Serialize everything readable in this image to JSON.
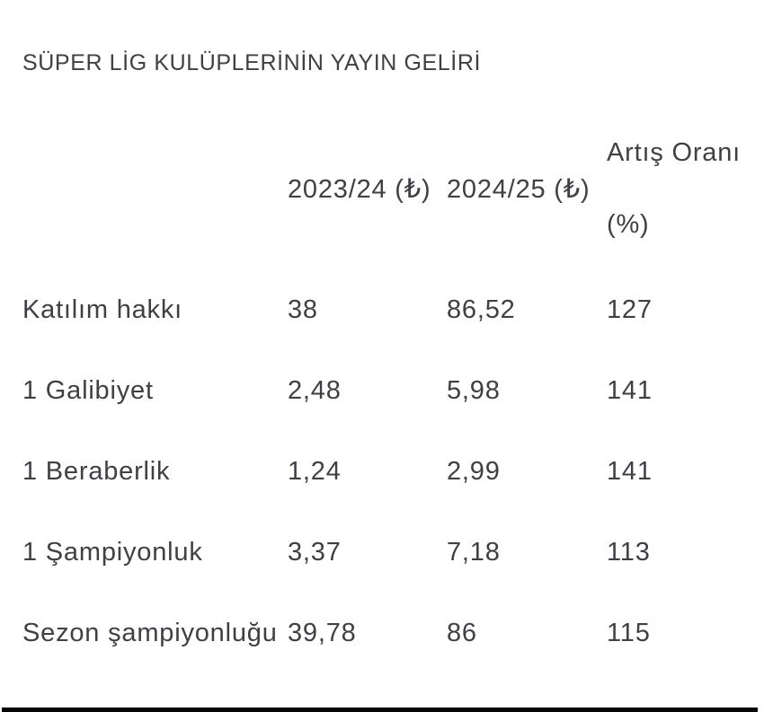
{
  "title": "SÜPER LİG KULÜPLERİNİN YAYIN GELİRİ",
  "colors": {
    "text": "#3f3f46",
    "background": "#ffffff",
    "bottom_bar": "#060606"
  },
  "table": {
    "columns": [
      {
        "label": ""
      },
      {
        "label": "2023/24 (₺)"
      },
      {
        "label": "2024/25 (₺)"
      },
      {
        "label": "Artış Oranı (%)",
        "line1": "Artış Oranı",
        "line2": "(%)"
      }
    ],
    "rows": [
      {
        "label": "Katılım hakkı",
        "v2023_24": "38",
        "v2024_25": "86,52",
        "artis_orani": "127"
      },
      {
        "label": "1 Galibiyet",
        "v2023_24": "2,48",
        "v2024_25": "5,98",
        "artis_orani": "141"
      },
      {
        "label": "1 Beraberlik",
        "v2023_24": "1,24",
        "v2024_25": "2,99",
        "artis_orani": "141"
      },
      {
        "label": "1 Şampiyonluk",
        "v2023_24": "3,37",
        "v2024_25": "7,18",
        "artis_orani": "113"
      },
      {
        "label": "Sezon şampiyonluğu",
        "v2023_24": "39,78",
        "v2024_25": "86",
        "artis_orani": "115"
      }
    ]
  },
  "chart_data": {
    "type": "table",
    "title": "SÜPER LİG KULÜPLERİNİN YAYIN GELİRİ",
    "columns": [
      "",
      "2023/24 (₺)",
      "2024/25 (₺)",
      "Artış Oranı (%)"
    ],
    "rows": [
      [
        "Katılım hakkı",
        "38",
        "86,52",
        "127"
      ],
      [
        "1 Galibiyet",
        "2,48",
        "5,98",
        "141"
      ],
      [
        "1 Beraberlik",
        "1,24",
        "2,99",
        "141"
      ],
      [
        "1 Şampiyonluk",
        "3,37",
        "7,18",
        "113"
      ],
      [
        "Sezon şampiyonluğu",
        "39,78",
        "86",
        "115"
      ]
    ]
  }
}
